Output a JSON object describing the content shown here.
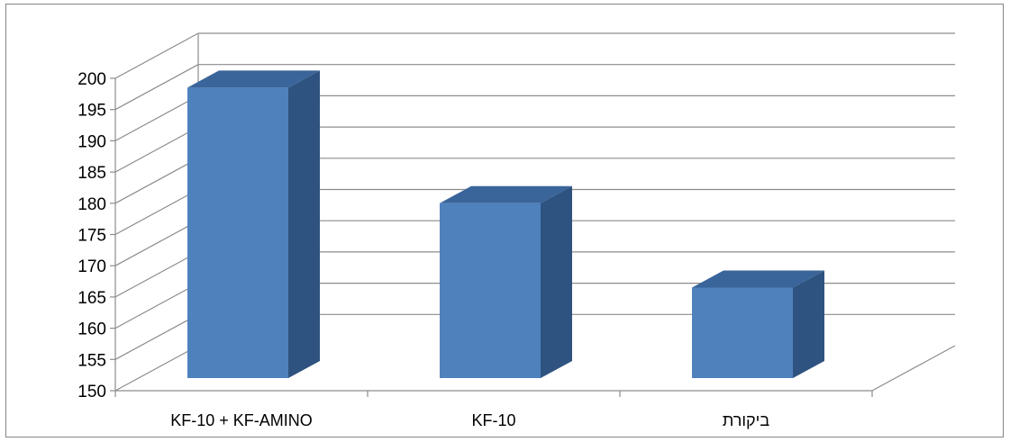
{
  "chart_data": {
    "type": "bar",
    "title": "",
    "xlabel": "",
    "ylabel": "",
    "categories": [
      "KF-10 + KF-AMINO",
      "KF-10",
      "ביקורת"
    ],
    "values": [
      198.5,
      180,
      166.5
    ],
    "ylim": [
      150,
      200
    ],
    "yticks": [
      150,
      155,
      160,
      165,
      170,
      175,
      180,
      185,
      190,
      195,
      200
    ],
    "grid": true,
    "legend": "none",
    "style": "3d-column",
    "colors": {
      "front": "#4F81BD",
      "top": "#3A659A",
      "side": "#2F5380",
      "grid": "#8C8C8C"
    }
  }
}
